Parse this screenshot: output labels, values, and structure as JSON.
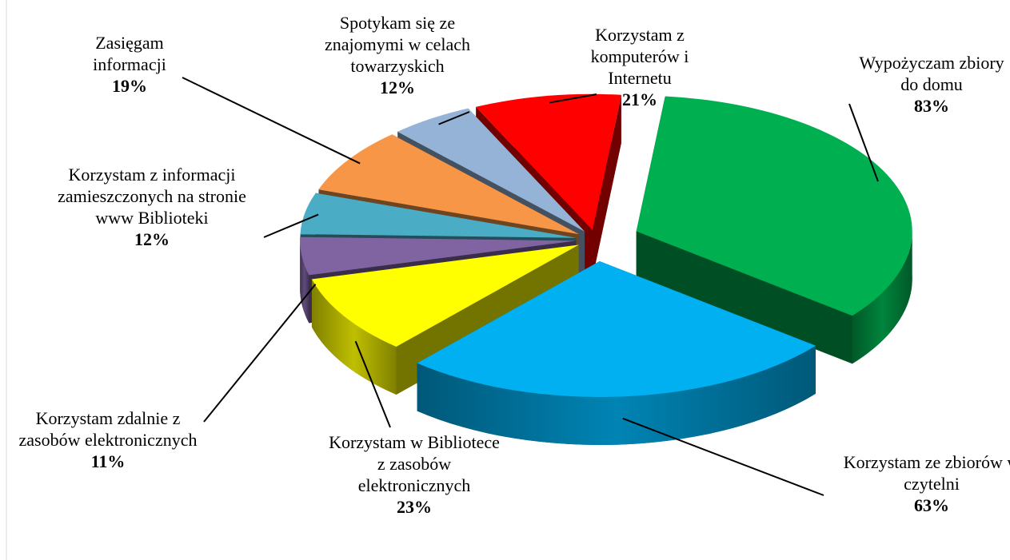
{
  "chart_data": {
    "type": "pie3d",
    "categories": [
      "Wypożyczam zbiory do domu",
      "Korzystam ze zbiorów w czytelni",
      "Korzystam w Bibliotece z zasobów elektronicznych",
      "Korzystam zdalnie z zasobów elektronicznych",
      "Korzystam z informacji zamieszczonych na stronie www Biblioteki",
      "Zasięgam informacji",
      "Spotykam się ze znajomymi w celach towarzyskich",
      "Korzystam z komputerów i Internetu"
    ],
    "values": [
      83,
      63,
      23,
      11,
      12,
      19,
      12,
      21
    ],
    "value_labels": [
      "83%",
      "63%",
      "23%",
      "11%",
      "12%",
      "19%",
      "12%",
      "21%"
    ],
    "colors": [
      "#00b050",
      "#00b0f0",
      "#ffff00",
      "#8064a2",
      "#4bacc6",
      "#f79646",
      "#95b3d7",
      "#ff0000"
    ]
  }
}
